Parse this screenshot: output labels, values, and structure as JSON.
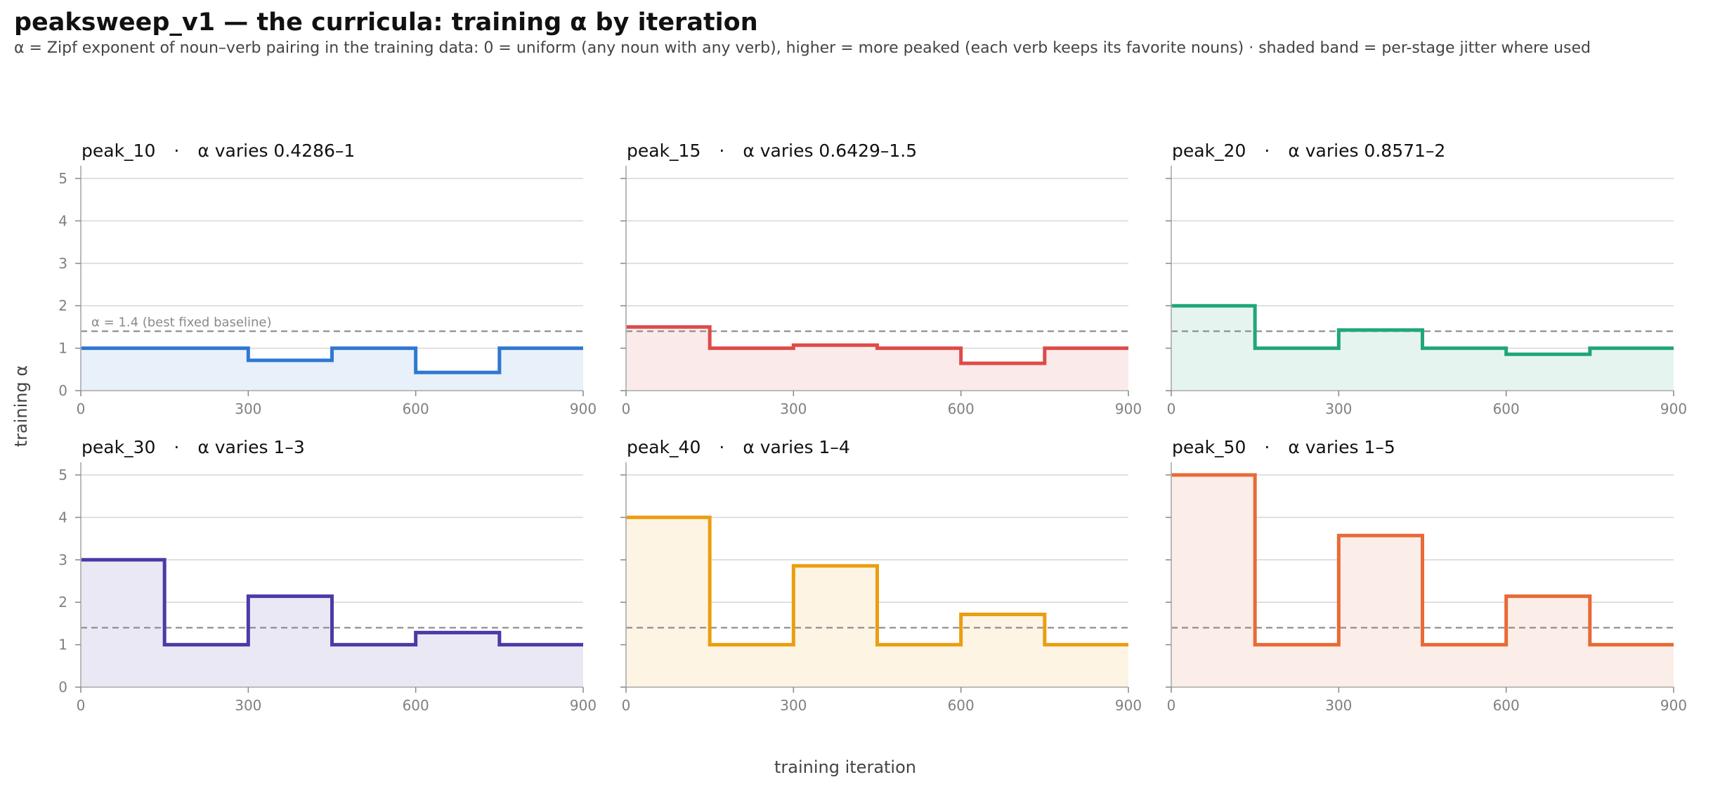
{
  "title": "peaksweep_v1 — the curricula: training α by iteration",
  "subtitle": "α = Zipf exponent of noun–verb pairing in the training data: 0 = uniform (any noun with any verb), higher = more peaked (each verb keeps its favorite nouns) · shaded band = per-stage jitter where used",
  "xlabel": "training iteration",
  "ylabel": "training α",
  "baseline_label": "α = 1.4 (best fixed baseline)",
  "chart_data": {
    "type": "line",
    "step": "post",
    "xlim": [
      0,
      900
    ],
    "ylim": [
      0,
      5.3
    ],
    "xticks": [
      0,
      300,
      600,
      900
    ],
    "yticks": [
      0,
      1,
      2,
      3,
      4,
      5
    ],
    "grid": "horizontal",
    "baseline": 1.4,
    "stage_starts": [
      0,
      150,
      300,
      450,
      600,
      750
    ],
    "series": [
      {
        "name": "peak_10",
        "desc": "α varies 0.4286–1",
        "color": "#2f78d0",
        "fill": "#e8f0fa",
        "values": [
          1,
          1,
          0.714,
          1,
          0.4286,
          1
        ]
      },
      {
        "name": "peak_15",
        "desc": "α varies 0.6429–1.5",
        "color": "#de4b48",
        "fill": "#fbeaea",
        "values": [
          1.5,
          1,
          1.071,
          1,
          0.6429,
          1
        ]
      },
      {
        "name": "peak_20",
        "desc": "α varies 0.8571–2",
        "color": "#1fa67c",
        "fill": "#e6f4ef",
        "values": [
          2,
          1,
          1.429,
          1,
          0.8571,
          1
        ]
      },
      {
        "name": "peak_30",
        "desc": "α varies 1–3",
        "color": "#4b3aa8",
        "fill": "#ebe8f5",
        "values": [
          3,
          1,
          2.143,
          1,
          1.286,
          1
        ]
      },
      {
        "name": "peak_40",
        "desc": "α varies 1–4",
        "color": "#eb9e10",
        "fill": "#fdf4e4",
        "values": [
          4,
          1,
          2.857,
          1,
          1.714,
          1
        ]
      },
      {
        "name": "peak_50",
        "desc": "α varies 1–5",
        "color": "#e86a36",
        "fill": "#fbede7",
        "values": [
          5,
          1,
          3.571,
          1,
          2.143,
          1
        ]
      }
    ]
  }
}
